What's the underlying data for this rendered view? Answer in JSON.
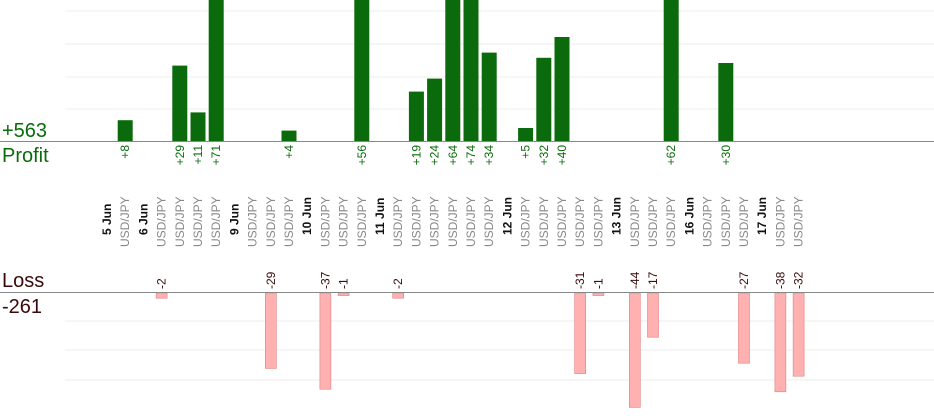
{
  "summary": {
    "profit_total": "+563",
    "profit_label": "Profit",
    "loss_label": "Loss",
    "loss_total": "-261"
  },
  "colors": {
    "profit_bar": "#0b6a0b",
    "loss_bar": "#ffb0b0",
    "loss_bar_edge": "#e08080",
    "profit_text": "#0a6b0a",
    "loss_text": "#3a0a0a",
    "pair_text": "#888888",
    "date_text": "#111111",
    "grid": "#eeeeee",
    "axis": "#888888"
  },
  "chart_data": {
    "type": "bar",
    "grid": true,
    "columns": [
      {
        "label": "5 Jun",
        "kind": "date"
      },
      {
        "label": "USD/JPY",
        "kind": "trade",
        "profit": 8,
        "profit_label": "+8"
      },
      {
        "label": "6 Jun",
        "kind": "date"
      },
      {
        "label": "USD/JPY",
        "kind": "trade",
        "loss": -2,
        "loss_label": "-2"
      },
      {
        "label": "USD/JPY",
        "kind": "trade",
        "profit": 29,
        "profit_label": "+29"
      },
      {
        "label": "USD/JPY",
        "kind": "trade",
        "profit": 11,
        "profit_label": "+11"
      },
      {
        "label": "USD/JPY",
        "kind": "trade",
        "profit": 71,
        "profit_label": "+71"
      },
      {
        "label": "9 Jun",
        "kind": "date"
      },
      {
        "label": "USD/JPY",
        "kind": "trade"
      },
      {
        "label": "USD/JPY",
        "kind": "trade",
        "loss": -29,
        "loss_label": "-29"
      },
      {
        "label": "USD/JPY",
        "kind": "trade",
        "profit": 4,
        "profit_label": "+4"
      },
      {
        "label": "10 Jun",
        "kind": "date"
      },
      {
        "label": "USD/JPY",
        "kind": "trade",
        "loss": -37,
        "loss_label": "-37"
      },
      {
        "label": "USD/JPY",
        "kind": "trade",
        "loss": -1,
        "loss_label": "-1"
      },
      {
        "label": "USD/JPY",
        "kind": "trade",
        "profit": 56,
        "profit_label": "+56"
      },
      {
        "label": "11 Jun",
        "kind": "date"
      },
      {
        "label": "USD/JPY",
        "kind": "trade",
        "loss": -2,
        "loss_label": "-2"
      },
      {
        "label": "USD/JPY",
        "kind": "trade",
        "profit": 19,
        "profit_label": "+19"
      },
      {
        "label": "USD/JPY",
        "kind": "trade",
        "profit": 24,
        "profit_label": "+24"
      },
      {
        "label": "USD/JPY",
        "kind": "trade",
        "profit": 64,
        "profit_label": "+64"
      },
      {
        "label": "USD/JPY",
        "kind": "trade",
        "profit": 74,
        "profit_label": "+74"
      },
      {
        "label": "USD/JPY",
        "kind": "trade",
        "profit": 34,
        "profit_label": "+34"
      },
      {
        "label": "12 Jun",
        "kind": "date"
      },
      {
        "label": "USD/JPY",
        "kind": "trade",
        "profit": 5,
        "profit_label": "+5"
      },
      {
        "label": "USD/JPY",
        "kind": "trade",
        "profit": 32,
        "profit_label": "+32"
      },
      {
        "label": "USD/JPY",
        "kind": "trade",
        "profit": 40,
        "profit_label": "+40"
      },
      {
        "label": "USD/JPY",
        "kind": "trade",
        "loss": -31,
        "loss_label": "-31"
      },
      {
        "label": "USD/JPY",
        "kind": "trade",
        "loss": -1,
        "loss_label": "-1"
      },
      {
        "label": "13 Jun",
        "kind": "date"
      },
      {
        "label": "USD/JPY",
        "kind": "trade",
        "loss": -44,
        "loss_label": "-44"
      },
      {
        "label": "USD/JPY",
        "kind": "trade",
        "loss": -17,
        "loss_label": "-17"
      },
      {
        "label": "USD/JPY",
        "kind": "trade",
        "profit": 62,
        "profit_label": "+62"
      },
      {
        "label": "16 Jun",
        "kind": "date"
      },
      {
        "label": "USD/JPY",
        "kind": "trade"
      },
      {
        "label": "USD/JPY",
        "kind": "trade",
        "profit": 30,
        "profit_label": "+30"
      },
      {
        "label": "USD/JPY",
        "kind": "trade",
        "loss": -27,
        "loss_label": "-27"
      },
      {
        "label": "17 Jun",
        "kind": "date"
      },
      {
        "label": "USD/JPY",
        "kind": "trade",
        "loss": -38,
        "loss_label": "-38"
      },
      {
        "label": "USD/JPY",
        "kind": "trade",
        "loss": -32,
        "loss_label": "-32"
      }
    ]
  }
}
